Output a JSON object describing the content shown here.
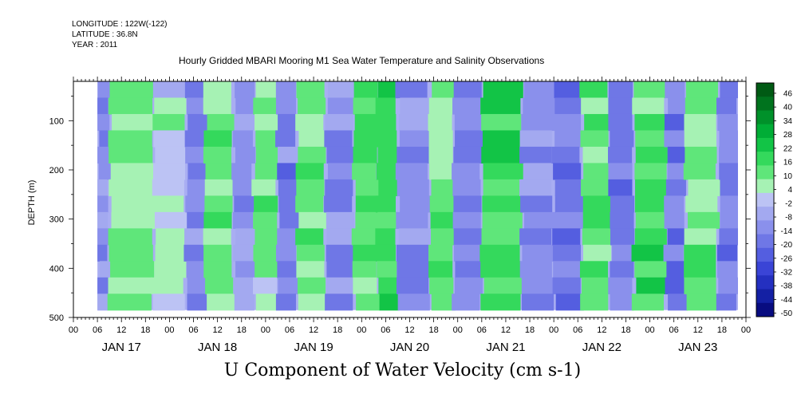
{
  "meta": {
    "longitude": "LONGITUDE : 122W(-122)",
    "latitude": "LATITUDE : 36.8N",
    "year": "YEAR : 2011"
  },
  "chart_data": {
    "type": "heatmap",
    "title": "Hourly Gridded MBARI Mooring M1 Sea Water Temperature and Salinity Observations",
    "subtitle": "U Component of Water Velocity (cm s-1)",
    "ylabel": "DEPTH (m)",
    "xlabel": "",
    "ylim": [
      500,
      20
    ],
    "y_reversed": true,
    "y_ticks": [
      "100",
      "200",
      "300",
      "400",
      "500"
    ],
    "x_hour_ticks": [
      "00",
      "06",
      "12",
      "18",
      "00",
      "06",
      "12",
      "18",
      "00",
      "06",
      "12",
      "18",
      "00",
      "06",
      "12",
      "18",
      "00",
      "06",
      "12",
      "18",
      "00",
      "06",
      "12",
      "18",
      "00",
      "06",
      "12",
      "18",
      "00"
    ],
    "x_day_labels": [
      "JAN 17",
      "JAN 18",
      "JAN 19",
      "JAN 20",
      "JAN 21",
      "JAN 22",
      "JAN 23"
    ],
    "data_extent": {
      "start": "2011-01-17 06:00",
      "end": "2011-01-23 22:00",
      "depth_top": 20,
      "depth_bottom": 485
    },
    "colorbar_levels": [
      "46",
      "40",
      "34",
      "28",
      "22",
      "16",
      "10",
      "4",
      "-2",
      "-8",
      "-14",
      "-20",
      "-26",
      "-32",
      "-38",
      "-44",
      "-50"
    ],
    "colorbar_colors": [
      "#005a14",
      "#00731e",
      "#00912a",
      "#00ad36",
      "#12c446",
      "#34d95c",
      "#5fe67a",
      "#a6f2b4",
      "#bcc3f4",
      "#a3a9f0",
      "#8a90ec",
      "#6f77e6",
      "#545ee0",
      "#3a44d6",
      "#2430c0",
      "#1420a4",
      "#080c80"
    ],
    "pattern_bands": [
      {
        "start": "2011-01-17 06:00",
        "end": "2011-01-17 09:00",
        "value": -10
      },
      {
        "start": "2011-01-17 09:00",
        "end": "2011-01-17 20:00",
        "value": 12
      },
      {
        "start": "2011-01-17 20:00",
        "end": "2011-01-18 04:00",
        "value": 4
      },
      {
        "start": "2011-01-18 04:00",
        "end": "2011-01-18 09:00",
        "value": -12
      },
      {
        "start": "2011-01-18 09:00",
        "end": "2011-01-18 16:00",
        "value": 14
      },
      {
        "start": "2011-01-18 16:00",
        "end": "2011-01-18 21:00",
        "value": -8
      },
      {
        "start": "2011-01-18 21:00",
        "end": "2011-01-19 03:00",
        "value": 10
      },
      {
        "start": "2011-01-19 03:00",
        "end": "2011-01-19 08:00",
        "value": -14
      },
      {
        "start": "2011-01-19 08:00",
        "end": "2011-01-19 15:00",
        "value": 12
      },
      {
        "start": "2011-01-19 15:00",
        "end": "2011-01-19 22:00",
        "value": -12
      },
      {
        "start": "2011-01-19 22:00",
        "end": "2011-01-20 04:00",
        "value": 16
      },
      {
        "start": "2011-01-20 04:00",
        "end": "2011-01-20 09:00",
        "value": 20
      },
      {
        "start": "2011-01-20 09:00",
        "end": "2011-01-20 17:00",
        "value": -10
      },
      {
        "start": "2011-01-20 17:00",
        "end": "2011-01-20 23:00",
        "value": 14
      },
      {
        "start": "2011-01-20 23:00",
        "end": "2011-01-21 06:00",
        "value": -12
      },
      {
        "start": "2011-01-21 06:00",
        "end": "2011-01-21 16:00",
        "value": 18
      },
      {
        "start": "2011-01-21 16:00",
        "end": "2011-01-22 00:00",
        "value": -10
      },
      {
        "start": "2011-01-22 00:00",
        "end": "2011-01-22 07:00",
        "value": -18
      },
      {
        "start": "2011-01-22 07:00",
        "end": "2011-01-22 14:00",
        "value": 12
      },
      {
        "start": "2011-01-22 14:00",
        "end": "2011-01-22 20:00",
        "value": -14
      },
      {
        "start": "2011-01-22 20:00",
        "end": "2011-01-23 04:00",
        "value": 16
      },
      {
        "start": "2011-01-23 04:00",
        "end": "2011-01-23 09:00",
        "value": -16
      },
      {
        "start": "2011-01-23 09:00",
        "end": "2011-01-23 17:00",
        "value": 12
      },
      {
        "start": "2011-01-23 17:00",
        "end": "2011-01-23 22:00",
        "value": -14
      }
    ]
  }
}
